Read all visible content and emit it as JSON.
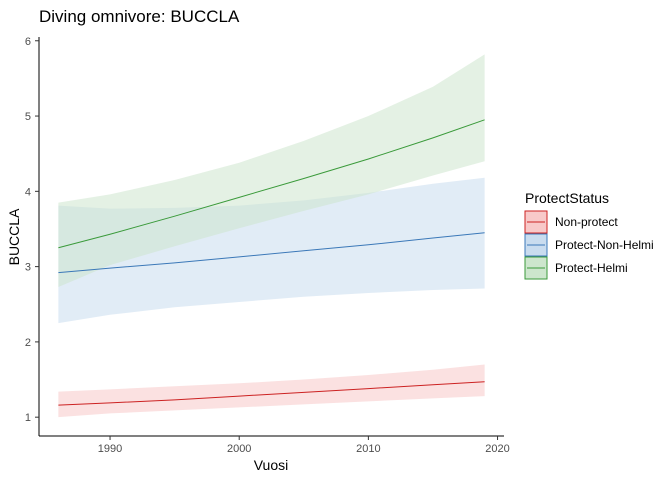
{
  "chart_data": {
    "type": "line",
    "title": "Diving omnivore: BUCCLA",
    "xlabel": "Vuosi",
    "ylabel": "BUCCLA",
    "xlim": [
      1984.5,
      2020.5
    ],
    "ylim": [
      0.75,
      6.05
    ],
    "x_ticks": [
      1990,
      2000,
      2010,
      2020
    ],
    "y_ticks": [
      1,
      2,
      3,
      4,
      5,
      6
    ],
    "grid": false,
    "legend": {
      "title": "ProtectStatus",
      "position": "right"
    },
    "x": [
      1986,
      1990,
      1995,
      2000,
      2005,
      2010,
      2015,
      2019
    ],
    "series": [
      {
        "name": "Non-protect",
        "color": "#cc2222",
        "fill": "#f8c9c9",
        "values": [
          1.16,
          1.19,
          1.23,
          1.28,
          1.33,
          1.38,
          1.43,
          1.47
        ],
        "lower": [
          1.0,
          1.05,
          1.09,
          1.13,
          1.17,
          1.21,
          1.25,
          1.28
        ],
        "upper": [
          1.34,
          1.37,
          1.41,
          1.45,
          1.5,
          1.56,
          1.63,
          1.7
        ]
      },
      {
        "name": "Protect-Non-Helmi",
        "color": "#3b78b8",
        "fill": "#c9dcef",
        "values": [
          2.92,
          2.98,
          3.05,
          3.13,
          3.21,
          3.29,
          3.38,
          3.45
        ],
        "lower": [
          2.25,
          2.36,
          2.46,
          2.53,
          2.6,
          2.65,
          2.69,
          2.71
        ],
        "upper": [
          3.81,
          3.77,
          3.78,
          3.81,
          3.88,
          3.98,
          4.1,
          4.18
        ]
      },
      {
        "name": "Protect-Helmi",
        "color": "#3a9a3a",
        "fill": "#cde6cd",
        "values": [
          3.25,
          3.43,
          3.67,
          3.92,
          4.17,
          4.43,
          4.71,
          4.95
        ],
        "lower": [
          2.73,
          3.02,
          3.27,
          3.51,
          3.74,
          3.96,
          4.21,
          4.4
        ],
        "upper": [
          3.85,
          3.96,
          4.15,
          4.38,
          4.67,
          5.0,
          5.39,
          5.82
        ]
      }
    ]
  }
}
